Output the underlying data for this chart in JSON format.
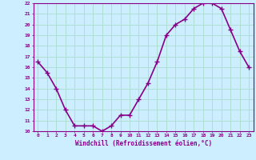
{
  "hours": [
    0,
    1,
    2,
    3,
    4,
    5,
    6,
    7,
    8,
    9,
    10,
    11,
    12,
    13,
    14,
    15,
    16,
    17,
    18,
    19,
    20,
    21,
    22,
    23
  ],
  "values": [
    16.5,
    15.5,
    14.0,
    12.0,
    10.5,
    10.5,
    10.5,
    10.0,
    10.5,
    11.5,
    11.5,
    13.0,
    14.5,
    16.5,
    19.0,
    20.0,
    20.5,
    21.5,
    22.0,
    22.0,
    21.5,
    19.5,
    17.5,
    16.0
  ],
  "line_color": "#880088",
  "marker": "+",
  "marker_size": 4,
  "bg_color": "#cceeff",
  "grid_color": "#aaddcc",
  "xlabel": "Windchill (Refroidissement éolien,°C)",
  "xlabel_color": "#880088",
  "ylim": [
    10,
    22
  ],
  "yticks": [
    10,
    11,
    12,
    13,
    14,
    15,
    16,
    17,
    18,
    19,
    20,
    21,
    22
  ],
  "xtick_labels": [
    "0",
    "1",
    "2",
    "3",
    "4",
    "5",
    "6",
    "7",
    "8",
    "9",
    "10",
    "11",
    "12",
    "13",
    "14",
    "15",
    "16",
    "17",
    "18",
    "19",
    "20",
    "21",
    "22",
    "23"
  ],
  "tick_color": "#880088",
  "line_width": 1.2,
  "marker_color": "#880088"
}
